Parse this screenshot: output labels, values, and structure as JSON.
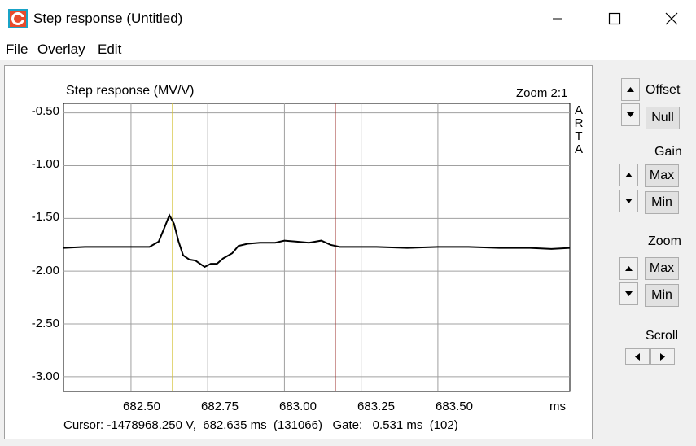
{
  "window": {
    "title": "Step response (Untitled)",
    "icons": {
      "app": "arta-app-icon",
      "minimize": "minimize-icon",
      "maximize": "maximize-icon",
      "close": "close-icon"
    }
  },
  "menu": [
    "File",
    "Overlay",
    "Edit"
  ],
  "plot": {
    "zoom_label": "Zoom 2:1",
    "watermark": [
      "A",
      "R",
      "T",
      "A"
    ],
    "x_unit": "ms",
    "cursor_line_color": "#d4c23a",
    "gate_line_color": "#9c2f2a",
    "status": "Cursor: -1478968.250 V,  682.635 ms  (131066)   Gate:   0.531 ms  (102)"
  },
  "chart_data": {
    "type": "line",
    "title": "Step response (MV/V)",
    "xlim": [
      682.28,
      683.93
    ],
    "ylim": [
      -3.14,
      -0.41
    ],
    "x_ticks": [
      "682.50",
      "682.75",
      "683.00",
      "683.25",
      "683.50"
    ],
    "y_ticks": [
      "-0.50",
      "-1.00",
      "-1.50",
      "-2.00",
      "-2.50",
      "-3.00"
    ],
    "cursor_x": 682.635,
    "gate_x": 683.166,
    "grid": true,
    "series": [
      {
        "x": [
          682.28,
          682.35,
          682.42,
          682.5,
          682.56,
          682.59,
          682.61,
          682.625,
          682.64,
          682.655,
          682.67,
          682.69,
          682.71,
          682.74,
          682.76,
          682.78,
          682.8,
          682.83,
          682.85,
          682.88,
          682.92,
          682.97,
          683.0,
          683.04,
          683.08,
          683.12,
          683.15,
          683.18,
          683.22,
          683.3,
          683.4,
          683.5,
          683.6,
          683.7,
          683.8,
          683.87,
          683.93
        ],
        "values": [
          -1.78,
          -1.77,
          -1.77,
          -1.77,
          -1.77,
          -1.72,
          -1.58,
          -1.47,
          -1.55,
          -1.72,
          -1.85,
          -1.89,
          -1.9,
          -1.96,
          -1.93,
          -1.93,
          -1.88,
          -1.83,
          -1.76,
          -1.74,
          -1.73,
          -1.73,
          -1.71,
          -1.72,
          -1.73,
          -1.71,
          -1.75,
          -1.77,
          -1.77,
          -1.77,
          -1.78,
          -1.77,
          -1.77,
          -1.78,
          -1.78,
          -1.79,
          -1.78
        ]
      }
    ]
  },
  "controls": {
    "offset": {
      "label": "Offset",
      "null_label": "Null"
    },
    "gain": {
      "label": "Gain",
      "max_label": "Max",
      "min_label": "Min"
    },
    "zoom": {
      "label": "Zoom",
      "max_label": "Max",
      "min_label": "Min"
    },
    "scroll": {
      "label": "Scroll"
    },
    "icons": {
      "up": "up-arrow-icon",
      "down": "down-arrow-icon",
      "left": "left-arrow-icon",
      "right": "right-arrow-icon"
    }
  }
}
